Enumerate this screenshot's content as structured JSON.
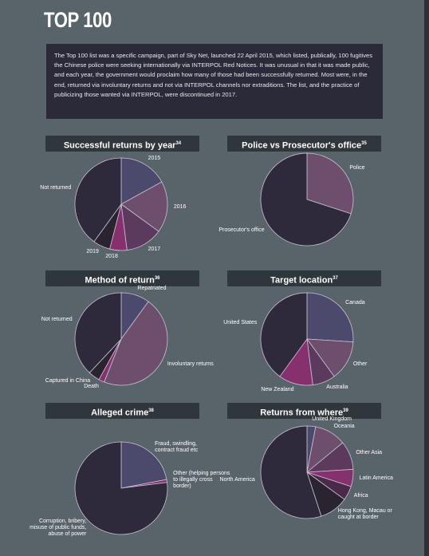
{
  "title": "TOP 100",
  "intro": "The Top 100 list was a specific campaign, part of Sky Net, launched 22 April 2015, which listed, publically, 100 fugitives the Chinese police were seeking internationally via INTERPOL Red Notices. It was unusual in that it was made public, and each year, the government would proclaim how many of those had been successfully returned. Most were, in the end, returned via involuntary returns and not via INTERPOL channels nor extraditions. The list, and the practice of publicizing those wanted via INTERPOL, were discontinued in 2017.",
  "chart_data": [
    {
      "type": "pie",
      "title": "Successful returns by year",
      "footnote": "34",
      "categories": [
        "2015",
        "2016",
        "2017",
        "2018",
        "2019",
        "Not returned"
      ],
      "values": [
        17,
        18,
        13,
        6,
        6,
        40
      ],
      "colors": [
        "#4b4a6c",
        "#6d4f6d",
        "#5b3a5e",
        "#86306d",
        "#2a2330",
        "#2e2a3b"
      ]
    },
    {
      "type": "pie",
      "title": "Police vs Prosecutor's office",
      "footnote": "35",
      "categories": [
        "Police",
        "Prosecutor's office"
      ],
      "values": [
        30,
        70
      ],
      "colors": [
        "#6d4f6d",
        "#2e2a3b"
      ]
    },
    {
      "type": "pie",
      "title": "Method of return",
      "footnote": "36",
      "categories": [
        "Repatriated",
        "Involuntary returns",
        "Death",
        "Captured in China",
        "Not returned"
      ],
      "values": [
        10,
        46,
        2,
        4,
        38
      ],
      "colors": [
        "#4b4a6c",
        "#6d4f6d",
        "#86306d",
        "#2a2330",
        "#2e2a3b"
      ]
    },
    {
      "type": "pie",
      "title": "Target location",
      "footnote": "37",
      "categories": [
        "Canada",
        "Other",
        "Australia",
        "New Zealand",
        "United States"
      ],
      "values": [
        26,
        14,
        8,
        12,
        40
      ],
      "colors": [
        "#4b4a6c",
        "#6d4f6d",
        "#5b3a5e",
        "#86306d",
        "#2e2a3b"
      ]
    },
    {
      "type": "pie",
      "title": "Alleged crime",
      "footnote": "38",
      "categories": [
        "Fraud, swindling, contract fraud etc",
        "Other (helping persons to illegally cross border)",
        "Corruption, bribery, misuse of public funds, abuse of power"
      ],
      "values": [
        22,
        1,
        77
      ],
      "colors": [
        "#4b4a6c",
        "#86306d",
        "#2e2a3b"
      ]
    },
    {
      "type": "pie",
      "title": "Returns from where",
      "footnote": "39",
      "categories": [
        "United Kingdom",
        "Oceania",
        "Other Asia",
        "Latin America",
        "Africa",
        "Hong Kong, Macau or caught at border",
        "North America"
      ],
      "values": [
        3,
        11,
        10,
        6,
        5,
        10,
        55
      ],
      "colors": [
        "#4b4a6c",
        "#6d4f6d",
        "#5b3a5e",
        "#86306d",
        "#4a2a48",
        "#2a2330",
        "#2e2a3b"
      ]
    }
  ]
}
